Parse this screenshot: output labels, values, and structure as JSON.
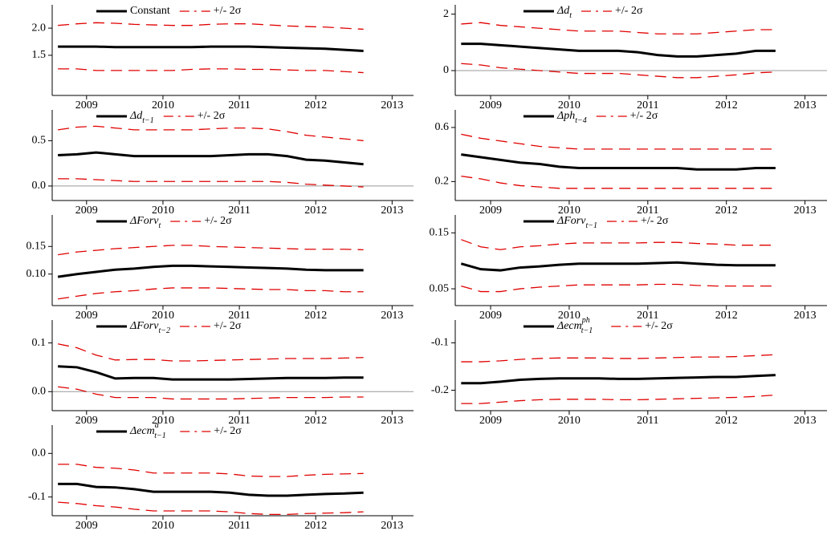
{
  "chart_data": [
    {
      "type": "line",
      "x": [
        2008.625,
        2008.875,
        2009.125,
        2009.375,
        2009.625,
        2009.875,
        2010.125,
        2010.375,
        2010.625,
        2010.875,
        2011.125,
        2011.375,
        2011.625,
        2011.875,
        2012.125,
        2012.375,
        2012.625
      ],
      "xlim": [
        2008.55,
        2013.28
      ],
      "xticks": [
        2009,
        2010,
        2011,
        2012,
        2013
      ],
      "ylim": [
        0.76,
        2.43
      ],
      "yticks": [
        1.5,
        {
          "value": 2,
          "label": "2.0"
        }
      ],
      "zero_line": false,
      "series": [
        {
          "name": "Constant",
          "color": "#000000",
          "style": "solid",
          "values": [
            1.66,
            1.66,
            1.66,
            1.65,
            1.65,
            1.65,
            1.65,
            1.65,
            1.66,
            1.66,
            1.66,
            1.65,
            1.64,
            1.63,
            1.62,
            1.6,
            1.58
          ]
        },
        {
          "name": "+/- 2σ",
          "color": "#e00000",
          "style": "dashed",
          "values": [
            2.05,
            2.08,
            2.1,
            2.09,
            2.07,
            2.06,
            2.05,
            2.05,
            2.07,
            2.08,
            2.08,
            2.06,
            2.04,
            2.03,
            2.02,
            2.0,
            1.98
          ]
        },
        {
          "color": "#e00000",
          "style": "dashed",
          "values": [
            1.25,
            1.25,
            1.22,
            1.22,
            1.22,
            1.22,
            1.22,
            1.24,
            1.25,
            1.25,
            1.24,
            1.24,
            1.23,
            1.22,
            1.22,
            1.2,
            1.18
          ]
        }
      ]
    },
    {
      "type": "line",
      "x": [
        2008.625,
        2008.875,
        2009.125,
        2009.375,
        2009.625,
        2009.875,
        2010.125,
        2010.375,
        2010.625,
        2010.875,
        2011.125,
        2011.375,
        2011.625,
        2011.875,
        2012.125,
        2012.375,
        2012.625
      ],
      "xlim": [
        2008.55,
        2013.28
      ],
      "xticks": [
        2009,
        2010,
        2011,
        2012,
        2013
      ],
      "ylim": [
        -0.88,
        2.33
      ],
      "yticks": [
        0,
        2
      ],
      "zero_line": true,
      "series": [
        {
          "name": "Δd",
          "name_sub": "t",
          "color": "#000000",
          "style": "solid",
          "values": [
            0.95,
            0.95,
            0.9,
            0.85,
            0.8,
            0.75,
            0.7,
            0.7,
            0.7,
            0.65,
            0.55,
            0.5,
            0.5,
            0.55,
            0.6,
            0.7,
            0.7
          ]
        },
        {
          "name": "+/- 2σ",
          "color": "#e00000",
          "style": "dashed",
          "values": [
            1.65,
            1.7,
            1.6,
            1.55,
            1.5,
            1.45,
            1.4,
            1.4,
            1.4,
            1.35,
            1.3,
            1.3,
            1.3,
            1.35,
            1.4,
            1.45,
            1.45
          ]
        },
        {
          "color": "#e00000",
          "style": "dashed",
          "values": [
            0.25,
            0.2,
            0.1,
            0.05,
            0,
            -0.05,
            -0.1,
            -0.1,
            -0.1,
            -0.15,
            -0.2,
            -0.25,
            -0.25,
            -0.2,
            -0.15,
            -0.08,
            -0.05
          ]
        }
      ]
    },
    {
      "type": "line",
      "x": [
        2008.625,
        2008.875,
        2009.125,
        2009.375,
        2009.625,
        2009.875,
        2010.125,
        2010.375,
        2010.625,
        2010.875,
        2011.125,
        2011.375,
        2011.625,
        2011.875,
        2012.125,
        2012.375,
        2012.625
      ],
      "xlim": [
        2008.55,
        2013.28
      ],
      "xticks": [
        2009,
        2010,
        2011,
        2012,
        2013
      ],
      "ylim": [
        -0.16,
        0.84
      ],
      "yticks": [
        {
          "value": 0,
          "label": "0.0"
        },
        0.5
      ],
      "zero_line": true,
      "series": [
        {
          "name": "Δd",
          "name_sub": "t−1",
          "color": "#000000",
          "style": "solid",
          "values": [
            0.34,
            0.35,
            0.37,
            0.35,
            0.33,
            0.33,
            0.33,
            0.33,
            0.33,
            0.34,
            0.35,
            0.35,
            0.33,
            0.29,
            0.28,
            0.26,
            0.24
          ]
        },
        {
          "name": "+/- 2σ",
          "color": "#e00000",
          "style": "dashed",
          "values": [
            0.62,
            0.65,
            0.66,
            0.64,
            0.62,
            0.62,
            0.62,
            0.62,
            0.63,
            0.64,
            0.64,
            0.63,
            0.6,
            0.56,
            0.54,
            0.52,
            0.5
          ]
        },
        {
          "color": "#e00000",
          "style": "dashed",
          "values": [
            0.08,
            0.08,
            0.07,
            0.06,
            0.05,
            0.05,
            0.05,
            0.05,
            0.05,
            0.05,
            0.05,
            0.05,
            0.04,
            0.02,
            0.01,
            0,
            -0.01
          ]
        }
      ]
    },
    {
      "type": "line",
      "x": [
        2008.625,
        2008.875,
        2009.125,
        2009.375,
        2009.625,
        2009.875,
        2010.125,
        2010.375,
        2010.625,
        2010.875,
        2011.125,
        2011.375,
        2011.625,
        2011.875,
        2012.125,
        2012.375,
        2012.625
      ],
      "xlim": [
        2008.55,
        2013.28
      ],
      "xticks": [
        2009,
        2010,
        2011,
        2012,
        2013
      ],
      "ylim": [
        0.06,
        0.73
      ],
      "yticks": [
        0.2,
        0.6
      ],
      "zero_line": false,
      "series": [
        {
          "name": "Δph",
          "name_sub": "t−4",
          "color": "#000000",
          "style": "solid",
          "values": [
            0.4,
            0.38,
            0.36,
            0.34,
            0.33,
            0.31,
            0.3,
            0.3,
            0.3,
            0.3,
            0.3,
            0.3,
            0.29,
            0.29,
            0.29,
            0.3,
            0.3
          ]
        },
        {
          "name": "+/- 2σ",
          "color": "#e00000",
          "style": "dashed",
          "values": [
            0.55,
            0.52,
            0.5,
            0.48,
            0.46,
            0.45,
            0.44,
            0.44,
            0.44,
            0.44,
            0.44,
            0.44,
            0.44,
            0.44,
            0.44,
            0.44,
            0.44
          ]
        },
        {
          "color": "#e00000",
          "style": "dashed",
          "values": [
            0.24,
            0.22,
            0.19,
            0.17,
            0.16,
            0.15,
            0.15,
            0.15,
            0.15,
            0.15,
            0.15,
            0.15,
            0.15,
            0.15,
            0.15,
            0.15,
            0.15
          ]
        }
      ]
    },
    {
      "type": "line",
      "x": [
        2008.625,
        2008.875,
        2009.125,
        2009.375,
        2009.625,
        2009.875,
        2010.125,
        2010.375,
        2010.625,
        2010.875,
        2011.125,
        2011.375,
        2011.625,
        2011.875,
        2012.125,
        2012.375,
        2012.625
      ],
      "xlim": [
        2008.55,
        2013.28
      ],
      "xticks": [
        2009,
        2010,
        2011,
        2012,
        2013
      ],
      "ylim": [
        0.043,
        0.207
      ],
      "yticks": [
        {
          "value": 0.1,
          "label": "0.10"
        },
        0.15
      ],
      "zero_line": false,
      "series": [
        {
          "name": "ΔForv",
          "name_sub": "t",
          "color": "#000000",
          "style": "solid",
          "values": [
            0.095,
            0.1,
            0.104,
            0.108,
            0.11,
            0.113,
            0.115,
            0.115,
            0.114,
            0.113,
            0.112,
            0.111,
            0.11,
            0.108,
            0.107,
            0.107,
            0.107
          ]
        },
        {
          "name": "+/- 2σ",
          "color": "#e00000",
          "style": "dashed",
          "values": [
            0.135,
            0.14,
            0.143,
            0.146,
            0.148,
            0.15,
            0.152,
            0.152,
            0.15,
            0.149,
            0.148,
            0.147,
            0.146,
            0.145,
            0.145,
            0.145,
            0.144
          ]
        },
        {
          "color": "#e00000",
          "style": "dashed",
          "values": [
            0.055,
            0.06,
            0.065,
            0.068,
            0.07,
            0.073,
            0.075,
            0.075,
            0.075,
            0.074,
            0.073,
            0.072,
            0.072,
            0.07,
            0.07,
            0.068,
            0.068
          ]
        }
      ]
    },
    {
      "type": "line",
      "x": [
        2008.625,
        2008.875,
        2009.125,
        2009.375,
        2009.625,
        2009.875,
        2010.125,
        2010.375,
        2010.625,
        2010.875,
        2011.125,
        2011.375,
        2011.625,
        2011.875,
        2012.125,
        2012.375,
        2012.625
      ],
      "xlim": [
        2008.55,
        2013.28
      ],
      "xticks": [
        2009,
        2010,
        2011,
        2012,
        2013
      ],
      "ylim": [
        0.02,
        0.182
      ],
      "yticks": [
        0.05,
        0.15
      ],
      "zero_line": false,
      "series": [
        {
          "name": "ΔForv",
          "name_sub": "t−1",
          "color": "#000000",
          "style": "solid",
          "values": [
            0.095,
            0.085,
            0.083,
            0.088,
            0.09,
            0.093,
            0.095,
            0.095,
            0.095,
            0.095,
            0.096,
            0.097,
            0.095,
            0.093,
            0.092,
            0.092,
            0.092
          ]
        },
        {
          "name": "+/- 2σ",
          "color": "#e00000",
          "style": "dashed",
          "values": [
            0.138,
            0.125,
            0.12,
            0.125,
            0.127,
            0.13,
            0.132,
            0.132,
            0.132,
            0.132,
            0.133,
            0.133,
            0.131,
            0.13,
            0.128,
            0.128,
            0.128
          ]
        },
        {
          "color": "#e00000",
          "style": "dashed",
          "values": [
            0.055,
            0.045,
            0.045,
            0.05,
            0.053,
            0.055,
            0.057,
            0.057,
            0.057,
            0.057,
            0.058,
            0.058,
            0.056,
            0.055,
            0.055,
            0.055,
            0.055
          ]
        }
      ]
    },
    {
      "type": "line",
      "x": [
        2008.625,
        2008.875,
        2009.125,
        2009.375,
        2009.625,
        2009.875,
        2010.125,
        2010.375,
        2010.625,
        2010.875,
        2011.125,
        2011.375,
        2011.625,
        2011.875,
        2012.125,
        2012.375,
        2012.625
      ],
      "xlim": [
        2008.55,
        2013.28
      ],
      "xticks": [
        2009,
        2010,
        2011,
        2012,
        2013
      ],
      "ylim": [
        -0.039,
        0.147
      ],
      "yticks": [
        {
          "value": 0,
          "label": "0.0"
        },
        0.1
      ],
      "zero_line": true,
      "series": [
        {
          "name": "ΔForv",
          "name_sub": "t−2",
          "color": "#000000",
          "style": "solid",
          "values": [
            0.052,
            0.05,
            0.04,
            0.027,
            0.028,
            0.028,
            0.025,
            0.025,
            0.025,
            0.025,
            0.026,
            0.027,
            0.028,
            0.028,
            0.028,
            0.029,
            0.029
          ]
        },
        {
          "name": "+/- 2σ",
          "color": "#e00000",
          "style": "dashed",
          "values": [
            0.098,
            0.09,
            0.075,
            0.065,
            0.066,
            0.066,
            0.063,
            0.063,
            0.064,
            0.065,
            0.066,
            0.067,
            0.068,
            0.068,
            0.068,
            0.069,
            0.07
          ]
        },
        {
          "color": "#e00000",
          "style": "dashed",
          "values": [
            0.01,
            0.005,
            -0.005,
            -0.012,
            -0.012,
            -0.012,
            -0.015,
            -0.015,
            -0.015,
            -0.015,
            -0.014,
            -0.013,
            -0.012,
            -0.012,
            -0.012,
            -0.011,
            -0.011
          ]
        }
      ]
    },
    {
      "type": "line",
      "x": [
        2008.625,
        2008.875,
        2009.125,
        2009.375,
        2009.625,
        2009.875,
        2010.125,
        2010.375,
        2010.625,
        2010.875,
        2011.125,
        2011.375,
        2011.625,
        2011.875,
        2012.125,
        2012.375,
        2012.625
      ],
      "xlim": [
        2008.55,
        2013.28
      ],
      "xticks": [
        2009,
        2010,
        2011,
        2012,
        2013
      ],
      "ylim": [
        -0.243,
        -0.052
      ],
      "yticks": [
        -0.2,
        -0.1
      ],
      "zero_line": false,
      "series": [
        {
          "name": "Δecm",
          "name_sub": "t−1",
          "name_sup": "ph",
          "color": "#000000",
          "style": "solid",
          "values": [
            -0.185,
            -0.185,
            -0.182,
            -0.178,
            -0.176,
            -0.175,
            -0.175,
            -0.175,
            -0.176,
            -0.176,
            -0.175,
            -0.174,
            -0.173,
            -0.172,
            -0.172,
            -0.17,
            -0.168
          ]
        },
        {
          "name": "+/- 2σ",
          "color": "#e00000",
          "style": "dashed",
          "values": [
            -0.14,
            -0.14,
            -0.138,
            -0.135,
            -0.133,
            -0.132,
            -0.132,
            -0.132,
            -0.133,
            -0.133,
            -0.132,
            -0.131,
            -0.13,
            -0.13,
            -0.129,
            -0.127,
            -0.125
          ]
        },
        {
          "color": "#e00000",
          "style": "dashed",
          "values": [
            -0.228,
            -0.228,
            -0.225,
            -0.222,
            -0.22,
            -0.219,
            -0.219,
            -0.219,
            -0.22,
            -0.22,
            -0.219,
            -0.218,
            -0.217,
            -0.216,
            -0.215,
            -0.213,
            -0.21
          ]
        }
      ]
    },
    {
      "type": "line",
      "x": [
        2008.625,
        2008.875,
        2009.125,
        2009.375,
        2009.625,
        2009.875,
        2010.125,
        2010.375,
        2010.625,
        2010.875,
        2011.125,
        2011.375,
        2011.625,
        2011.875,
        2012.125,
        2012.375,
        2012.625
      ],
      "xlim": [
        2008.55,
        2013.28
      ],
      "xticks": [
        2009,
        2010,
        2011,
        2012,
        2013
      ],
      "ylim": [
        -0.143,
        0.065
      ],
      "yticks": [
        -0.1,
        {
          "value": 0,
          "label": "0.0"
        }
      ],
      "zero_line": false,
      "series": [
        {
          "name": "Δecm",
          "name_sub": "t−1",
          "name_sup": "d",
          "color": "#000000",
          "style": "solid",
          "values": [
            -0.07,
            -0.07,
            -0.077,
            -0.078,
            -0.082,
            -0.088,
            -0.088,
            -0.088,
            -0.088,
            -0.09,
            -0.095,
            -0.097,
            -0.097,
            -0.095,
            -0.093,
            -0.092,
            -0.09
          ]
        },
        {
          "name": "+/- 2σ",
          "color": "#e00000",
          "style": "dashed",
          "values": [
            -0.025,
            -0.025,
            -0.032,
            -0.034,
            -0.038,
            -0.045,
            -0.045,
            -0.045,
            -0.045,
            -0.047,
            -0.052,
            -0.053,
            -0.053,
            -0.05,
            -0.048,
            -0.047,
            -0.046
          ]
        },
        {
          "color": "#e00000",
          "style": "dashed",
          "values": [
            -0.112,
            -0.115,
            -0.12,
            -0.123,
            -0.128,
            -0.132,
            -0.132,
            -0.132,
            -0.132,
            -0.134,
            -0.138,
            -0.14,
            -0.14,
            -0.138,
            -0.137,
            -0.136,
            -0.134
          ]
        }
      ]
    }
  ]
}
